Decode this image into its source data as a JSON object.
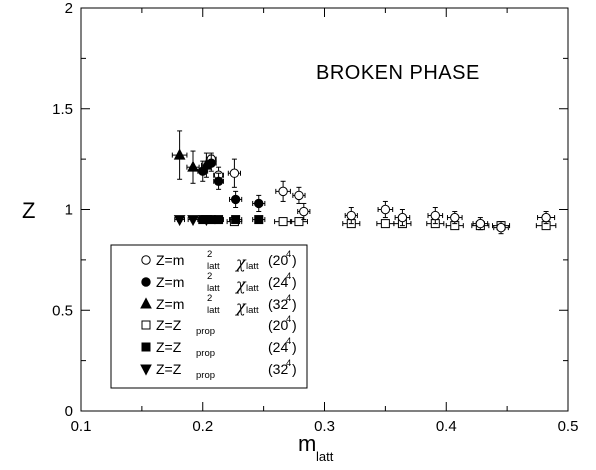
{
  "chart_data": {
    "type": "scatter",
    "annotation": "BROKEN  PHASE",
    "ylabel": "Z",
    "xlabel_main": "m",
    "xlabel_sub": "latt",
    "xlim": [
      0.1,
      0.5
    ],
    "ylim": [
      0,
      2
    ],
    "x_ticks": [
      "0.1",
      "0.2",
      "0.3",
      "0.4",
      "0.5"
    ],
    "y_ticks": [
      "0",
      "0.5",
      "1",
      "1.5",
      "2"
    ],
    "grid": false,
    "legend_position": "bottom-left",
    "series": [
      {
        "marker": "circle-open",
        "legend": {
          "z": "Z=m",
          "sup": "2",
          "sub1": "latt",
          "chi": "χ",
          "sub2": "latt",
          "lat_base": "(20",
          "lat_exp": "4",
          "lat_end": ")"
        },
        "points": [
          {
            "x": 0.207,
            "y": 1.25,
            "yerr": 0.03,
            "xerr": 0.004
          },
          {
            "x": 0.213,
            "y": 1.17,
            "yerr": 0.04,
            "xerr": 0.004
          },
          {
            "x": 0.226,
            "y": 1.18,
            "yerr": 0.07,
            "xerr": 0.005
          },
          {
            "x": 0.266,
            "y": 1.09,
            "yerr": 0.05,
            "xerr": 0.006
          },
          {
            "x": 0.279,
            "y": 1.07,
            "yerr": 0.04,
            "xerr": 0.005
          },
          {
            "x": 0.283,
            "y": 0.99,
            "yerr": 0.04,
            "xerr": 0.005
          },
          {
            "x": 0.322,
            "y": 0.97,
            "yerr": 0.04,
            "xerr": 0.005
          },
          {
            "x": 0.35,
            "y": 1.0,
            "yerr": 0.04,
            "xerr": 0.006
          },
          {
            "x": 0.364,
            "y": 0.96,
            "yerr": 0.04,
            "xerr": 0.006
          },
          {
            "x": 0.391,
            "y": 0.97,
            "yerr": 0.04,
            "xerr": 0.006
          },
          {
            "x": 0.407,
            "y": 0.96,
            "yerr": 0.03,
            "xerr": 0.006
          },
          {
            "x": 0.428,
            "y": 0.93,
            "yerr": 0.03,
            "xerr": 0.006
          },
          {
            "x": 0.445,
            "y": 0.91,
            "yerr": 0.03,
            "xerr": 0.006
          },
          {
            "x": 0.482,
            "y": 0.96,
            "yerr": 0.03,
            "xerr": 0.007
          }
        ]
      },
      {
        "marker": "circle-filled",
        "legend": {
          "z": "Z=m",
          "sup": "2",
          "sub1": "latt",
          "chi": "χ",
          "sub2": "latt",
          "lat_base": "(24",
          "lat_exp": "4",
          "lat_end": ")"
        },
        "points": [
          {
            "x": 0.2,
            "y": 1.19,
            "yerr": 0.05,
            "xerr": 0.004
          },
          {
            "x": 0.207,
            "y": 1.23,
            "yerr": 0.04,
            "xerr": 0.004
          },
          {
            "x": 0.213,
            "y": 1.14,
            "yerr": 0.04,
            "xerr": 0.004
          },
          {
            "x": 0.227,
            "y": 1.05,
            "yerr": 0.04,
            "xerr": 0.005
          },
          {
            "x": 0.246,
            "y": 1.03,
            "yerr": 0.04,
            "xerr": 0.005
          }
        ]
      },
      {
        "marker": "triangle-up-filled",
        "legend": {
          "z": "Z=m",
          "sup": "2",
          "sub1": "latt",
          "chi": "χ",
          "sub2": "latt",
          "lat_base": "(32",
          "lat_exp": "4",
          "lat_end": ")"
        },
        "points": [
          {
            "x": 0.181,
            "y": 1.27,
            "yerr": 0.12,
            "xerr": 0.006
          },
          {
            "x": 0.192,
            "y": 1.21,
            "yerr": 0.08,
            "xerr": 0.005
          },
          {
            "x": 0.203,
            "y": 1.22,
            "yerr": 0.06,
            "xerr": 0.004
          }
        ]
      },
      {
        "marker": "square-open",
        "legend": {
          "z": "Z=Z",
          "sub1": "prop",
          "lat_base": "(20",
          "lat_exp": "4",
          "lat_end": ")"
        },
        "points": [
          {
            "x": 0.226,
            "y": 0.94,
            "yerr": 0.01,
            "xerr": 0.006
          },
          {
            "x": 0.266,
            "y": 0.94,
            "yerr": 0.01,
            "xerr": 0.007
          },
          {
            "x": 0.279,
            "y": 0.94,
            "yerr": 0.01,
            "xerr": 0.007
          },
          {
            "x": 0.322,
            "y": 0.93,
            "yerr": 0.01,
            "xerr": 0.007
          },
          {
            "x": 0.35,
            "y": 0.93,
            "yerr": 0.01,
            "xerr": 0.007
          },
          {
            "x": 0.364,
            "y": 0.93,
            "yerr": 0.01,
            "xerr": 0.007
          },
          {
            "x": 0.391,
            "y": 0.93,
            "yerr": 0.01,
            "xerr": 0.007
          },
          {
            "x": 0.407,
            "y": 0.92,
            "yerr": 0.01,
            "xerr": 0.007
          },
          {
            "x": 0.428,
            "y": 0.92,
            "yerr": 0.01,
            "xerr": 0.007
          },
          {
            "x": 0.445,
            "y": 0.92,
            "yerr": 0.01,
            "xerr": 0.007
          },
          {
            "x": 0.482,
            "y": 0.92,
            "yerr": 0.01,
            "xerr": 0.008
          }
        ]
      },
      {
        "marker": "square-filled",
        "legend": {
          "z": "Z=Z",
          "sub1": "prop",
          "lat_base": "(24",
          "lat_exp": "4",
          "lat_end": ")"
        },
        "points": [
          {
            "x": 0.2,
            "y": 0.95,
            "yerr": 0.01,
            "xerr": 0.004
          },
          {
            "x": 0.207,
            "y": 0.95,
            "yerr": 0.01,
            "xerr": 0.004
          },
          {
            "x": 0.213,
            "y": 0.95,
            "yerr": 0.01,
            "xerr": 0.004
          },
          {
            "x": 0.227,
            "y": 0.95,
            "yerr": 0.01,
            "xerr": 0.005
          },
          {
            "x": 0.246,
            "y": 0.95,
            "yerr": 0.01,
            "xerr": 0.005
          }
        ]
      },
      {
        "marker": "triangle-down-filled",
        "legend": {
          "z": "Z=Z",
          "sub1": "prop",
          "lat_base": "(32",
          "lat_exp": "4",
          "lat_end": ")"
        },
        "points": [
          {
            "x": 0.181,
            "y": 0.95,
            "yerr": 0.01,
            "xerr": 0.004
          },
          {
            "x": 0.192,
            "y": 0.95,
            "yerr": 0.01,
            "xerr": 0.004
          },
          {
            "x": 0.203,
            "y": 0.95,
            "yerr": 0.01,
            "xerr": 0.004
          }
        ]
      }
    ]
  }
}
